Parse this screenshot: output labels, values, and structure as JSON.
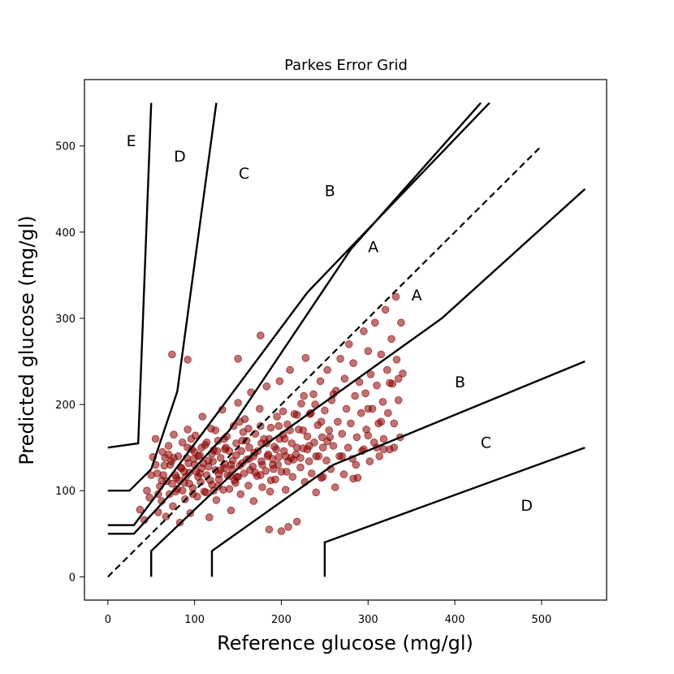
{
  "chart_data": {
    "type": "scatter",
    "title": "Parkes Error Grid",
    "xlabel": "Reference glucose (mg/gl)",
    "ylabel": "Predicted glucose (mg/gl)",
    "xlim": [
      -27,
      575
    ],
    "ylim": [
      -27,
      577
    ],
    "xticks": [
      0,
      100,
      200,
      300,
      400,
      500
    ],
    "yticks": [
      0,
      100,
      200,
      300,
      400,
      500
    ],
    "grid": false,
    "colors": {
      "points": "#8b0000",
      "lines": "#000000"
    },
    "identity_line": {
      "x": [
        0,
        500
      ],
      "y": [
        0,
        500
      ],
      "style": "dashed"
    },
    "zone_boundaries": [
      {
        "name": "upper-A",
        "x": [
          0,
          30,
          140,
          280,
          430
        ],
        "y": [
          50,
          50,
          170,
          380,
          550
        ]
      },
      {
        "name": "lower-A",
        "x": [
          50,
          50,
          170,
          385,
          550
        ],
        "y": [
          0,
          30,
          145,
          300,
          450
        ]
      },
      {
        "name": "upper-B",
        "x": [
          0,
          30,
          230,
          440
        ],
        "y": [
          60,
          60,
          330,
          550
        ]
      },
      {
        "name": "lower-B",
        "x": [
          120,
          120,
          260,
          550
        ],
        "y": [
          0,
          30,
          130,
          250
        ]
      },
      {
        "name": "upper-C",
        "x": [
          0,
          25,
          50,
          80,
          125
        ],
        "y": [
          100,
          100,
          125,
          215,
          550
        ]
      },
      {
        "name": "lower-C",
        "x": [
          250,
          250,
          550
        ],
        "y": [
          0,
          40,
          150
        ]
      },
      {
        "name": "upper-D",
        "x": [
          0,
          35,
          50
        ],
        "y": [
          150,
          155,
          550
        ]
      }
    ],
    "zone_labels": [
      {
        "text": "E",
        "x": 27,
        "y": 505
      },
      {
        "text": "D",
        "x": 83,
        "y": 487
      },
      {
        "text": "C",
        "x": 157,
        "y": 467
      },
      {
        "text": "B",
        "x": 256,
        "y": 447
      },
      {
        "text": "A",
        "x": 306,
        "y": 382
      },
      {
        "text": "A",
        "x": 356,
        "y": 326
      },
      {
        "text": "B",
        "x": 406,
        "y": 225
      },
      {
        "text": "C",
        "x": 436,
        "y": 155
      },
      {
        "text": "D",
        "x": 483,
        "y": 82
      }
    ],
    "points": [
      [
        37,
        78
      ],
      [
        42,
        66
      ],
      [
        45,
        100
      ],
      [
        48,
        92
      ],
      [
        50,
        118
      ],
      [
        52,
        139
      ],
      [
        55,
        160
      ],
      [
        57,
        120
      ],
      [
        58,
        75
      ],
      [
        60,
        105
      ],
      [
        62,
        88
      ],
      [
        63,
        145
      ],
      [
        65,
        129
      ],
      [
        67,
        70
      ],
      [
        68,
        111
      ],
      [
        70,
        152
      ],
      [
        71,
        96
      ],
      [
        73,
        134
      ],
      [
        75,
        82
      ],
      [
        76,
        165
      ],
      [
        78,
        118
      ],
      [
        80,
        102
      ],
      [
        81,
        140
      ],
      [
        83,
        63
      ],
      [
        84,
        127
      ],
      [
        86,
        156
      ],
      [
        88,
        109
      ],
      [
        89,
        90
      ],
      [
        91,
        138
      ],
      [
        92,
        171
      ],
      [
        94,
        121
      ],
      [
        95,
        74
      ],
      [
        97,
        148
      ],
      [
        98,
        103
      ],
      [
        100,
        130
      ],
      [
        101,
        164
      ],
      [
        103,
        93
      ],
      [
        104,
        116
      ],
      [
        106,
        141
      ],
      [
        108,
        126
      ],
      [
        109,
        186
      ],
      [
        111,
        99
      ],
      [
        112,
        153
      ],
      [
        114,
        118
      ],
      [
        116,
        135
      ],
      [
        117,
        69
      ],
      [
        119,
        172
      ],
      [
        120,
        107
      ],
      [
        122,
        147
      ],
      [
        124,
        124
      ],
      [
        125,
        89
      ],
      [
        127,
        158
      ],
      [
        128,
        113
      ],
      [
        130,
        138
      ],
      [
        132,
        194
      ],
      [
        133,
        101
      ],
      [
        135,
        131
      ],
      [
        137,
        163
      ],
      [
        138,
        118
      ],
      [
        140,
        146
      ],
      [
        142,
        77
      ],
      [
        143,
        125
      ],
      [
        145,
        175
      ],
      [
        147,
        109
      ],
      [
        148,
        141
      ],
      [
        150,
        202
      ],
      [
        152,
        129
      ],
      [
        153,
        96
      ],
      [
        155,
        158
      ],
      [
        157,
        120
      ],
      [
        158,
        183
      ],
      [
        160,
        136
      ],
      [
        162,
        106
      ],
      [
        163,
        150
      ],
      [
        165,
        214
      ],
      [
        167,
        128
      ],
      [
        168,
        88
      ],
      [
        170,
        166
      ],
      [
        172,
        117
      ],
      [
        173,
        146
      ],
      [
        175,
        195
      ],
      [
        177,
        134
      ],
      [
        178,
        104
      ],
      [
        180,
        160
      ],
      [
        182,
        123
      ],
      [
        183,
        221
      ],
      [
        185,
        142
      ],
      [
        187,
        99
      ],
      [
        188,
        173
      ],
      [
        190,
        130
      ],
      [
        192,
        151
      ],
      [
        193,
        113
      ],
      [
        195,
        186
      ],
      [
        197,
        139
      ],
      [
        198,
        227
      ],
      [
        200,
        122
      ],
      [
        202,
        165
      ],
      [
        203,
        146
      ],
      [
        205,
        101
      ],
      [
        207,
        177
      ],
      [
        208,
        134
      ],
      [
        210,
        240
      ],
      [
        212,
        155
      ],
      [
        213,
        116
      ],
      [
        215,
        189
      ],
      [
        217,
        142
      ],
      [
        218,
        64
      ],
      [
        220,
        171
      ],
      [
        222,
        127
      ],
      [
        223,
        201
      ],
      [
        225,
        149
      ],
      [
        227,
        110
      ],
      [
        228,
        254
      ],
      [
        230,
        163
      ],
      [
        232,
        134
      ],
      [
        233,
        189
      ],
      [
        235,
        120
      ],
      [
        237,
        212
      ],
      [
        238,
        156
      ],
      [
        240,
        98
      ],
      [
        242,
        176
      ],
      [
        243,
        140
      ],
      [
        245,
        227
      ],
      [
        247,
        162
      ],
      [
        248,
        116
      ],
      [
        250,
        193
      ],
      [
        252,
        135
      ],
      [
        253,
        240
      ],
      [
        255,
        170
      ],
      [
        257,
        125
      ],
      [
        258,
        205
      ],
      [
        260,
        152
      ],
      [
        262,
        104
      ],
      [
        263,
        216
      ],
      [
        265,
        180
      ],
      [
        267,
        140
      ],
      [
        268,
        253
      ],
      [
        270,
        166
      ],
      [
        272,
        119
      ],
      [
        273,
        230
      ],
      [
        275,
        195
      ],
      [
        277,
        150
      ],
      [
        278,
        270
      ],
      [
        280,
        178
      ],
      [
        282,
        137
      ],
      [
        283,
        248
      ],
      [
        285,
        210
      ],
      [
        287,
        162
      ],
      [
        288,
        115
      ],
      [
        290,
        226
      ],
      [
        292,
        190
      ],
      [
        293,
        146
      ],
      [
        295,
        285
      ],
      [
        297,
        213
      ],
      [
        298,
        171
      ],
      [
        300,
        262
      ],
      [
        302,
        134
      ],
      [
        303,
        235
      ],
      [
        305,
        195
      ],
      [
        307,
        156
      ],
      [
        308,
        295
      ],
      [
        310,
        222
      ],
      [
        312,
        178
      ],
      [
        313,
        140
      ],
      [
        315,
        258
      ],
      [
        317,
        203
      ],
      [
        318,
        160
      ],
      [
        320,
        310
      ],
      [
        322,
        240
      ],
      [
        323,
        190
      ],
      [
        325,
        148
      ],
      [
        327,
        276
      ],
      [
        328,
        224
      ],
      [
        330,
        178
      ],
      [
        332,
        325
      ],
      [
        333,
        252
      ],
      [
        335,
        205
      ],
      [
        337,
        162
      ],
      [
        338,
        295
      ],
      [
        340,
        236
      ],
      [
        55,
        130
      ],
      [
        62,
        112
      ],
      [
        70,
        142
      ],
      [
        78,
        99
      ],
      [
        85,
        126
      ],
      [
        92,
        150
      ],
      [
        99,
        137
      ],
      [
        106,
        120
      ],
      [
        113,
        98
      ],
      [
        120,
        143
      ],
      [
        127,
        105
      ],
      [
        134,
        160
      ],
      [
        141,
        117
      ],
      [
        148,
        155
      ],
      [
        155,
        132
      ],
      [
        162,
        172
      ],
      [
        169,
        144
      ],
      [
        176,
        118
      ],
      [
        183,
        155
      ],
      [
        190,
        137
      ],
      [
        197,
        175
      ],
      [
        204,
        160
      ],
      [
        211,
        138
      ],
      [
        218,
        188
      ],
      [
        225,
        170
      ],
      [
        232,
        152
      ],
      [
        239,
        200
      ],
      [
        246,
        180
      ],
      [
        253,
        157
      ],
      [
        260,
        212
      ],
      [
        72,
        130
      ],
      [
        79,
        115
      ],
      [
        86,
        100
      ],
      [
        93,
        132
      ],
      [
        100,
        145
      ],
      [
        107,
        110
      ],
      [
        114,
        156
      ],
      [
        121,
        134
      ],
      [
        128,
        119
      ],
      [
        135,
        148
      ],
      [
        142,
        130
      ],
      [
        149,
        116
      ],
      [
        156,
        168
      ],
      [
        163,
        137
      ],
      [
        170,
        121
      ],
      [
        177,
        155
      ],
      [
        184,
        140
      ],
      [
        191,
        125
      ],
      [
        198,
        160
      ],
      [
        205,
        140
      ],
      [
        64,
        118
      ],
      [
        76,
        138
      ],
      [
        88,
        122
      ],
      [
        96,
        160
      ],
      [
        104,
        140
      ],
      [
        116,
        128
      ],
      [
        124,
        170
      ],
      [
        136,
        150
      ],
      [
        144,
        135
      ],
      [
        152,
        180
      ],
      [
        160,
        158
      ],
      [
        168,
        140
      ],
      [
        176,
        175
      ],
      [
        186,
        160
      ],
      [
        194,
        148
      ],
      [
        202,
        192
      ],
      [
        210,
        170
      ],
      [
        218,
        150
      ],
      [
        226,
        210
      ],
      [
        234,
        190
      ],
      [
        82,
        112
      ],
      [
        94,
        108
      ],
      [
        102,
        122
      ],
      [
        110,
        132
      ],
      [
        118,
        112
      ],
      [
        126,
        146
      ],
      [
        134,
        126
      ],
      [
        146,
        112
      ],
      [
        154,
        146
      ],
      [
        164,
        124
      ],
      [
        58,
        96
      ],
      [
        66,
        138
      ],
      [
        74,
        108
      ],
      [
        90,
        116
      ],
      [
        98,
        96
      ],
      [
        108,
        150
      ],
      [
        122,
        100
      ],
      [
        130,
        124
      ],
      [
        140,
        102
      ],
      [
        150,
        116
      ],
      [
        178,
        130
      ],
      [
        188,
        112
      ],
      [
        196,
        130
      ],
      [
        206,
        122
      ],
      [
        214,
        136
      ],
      [
        222,
        138
      ],
      [
        230,
        148
      ],
      [
        240,
        140
      ],
      [
        248,
        150
      ],
      [
        256,
        162
      ],
      [
        74,
        258
      ],
      [
        92,
        252
      ],
      [
        150,
        253
      ],
      [
        176,
        280
      ],
      [
        246,
        115
      ],
      [
        283,
        114
      ],
      [
        295,
        148
      ],
      [
        186,
        55
      ],
      [
        200,
        53
      ],
      [
        208,
        58
      ],
      [
        270,
        140
      ],
      [
        286,
        130
      ],
      [
        300,
        164
      ],
      [
        310,
        150
      ],
      [
        318,
        148
      ],
      [
        330,
        150
      ],
      [
        300,
        195
      ],
      [
        315,
        180
      ],
      [
        325,
        225
      ],
      [
        335,
        230
      ]
    ]
  }
}
